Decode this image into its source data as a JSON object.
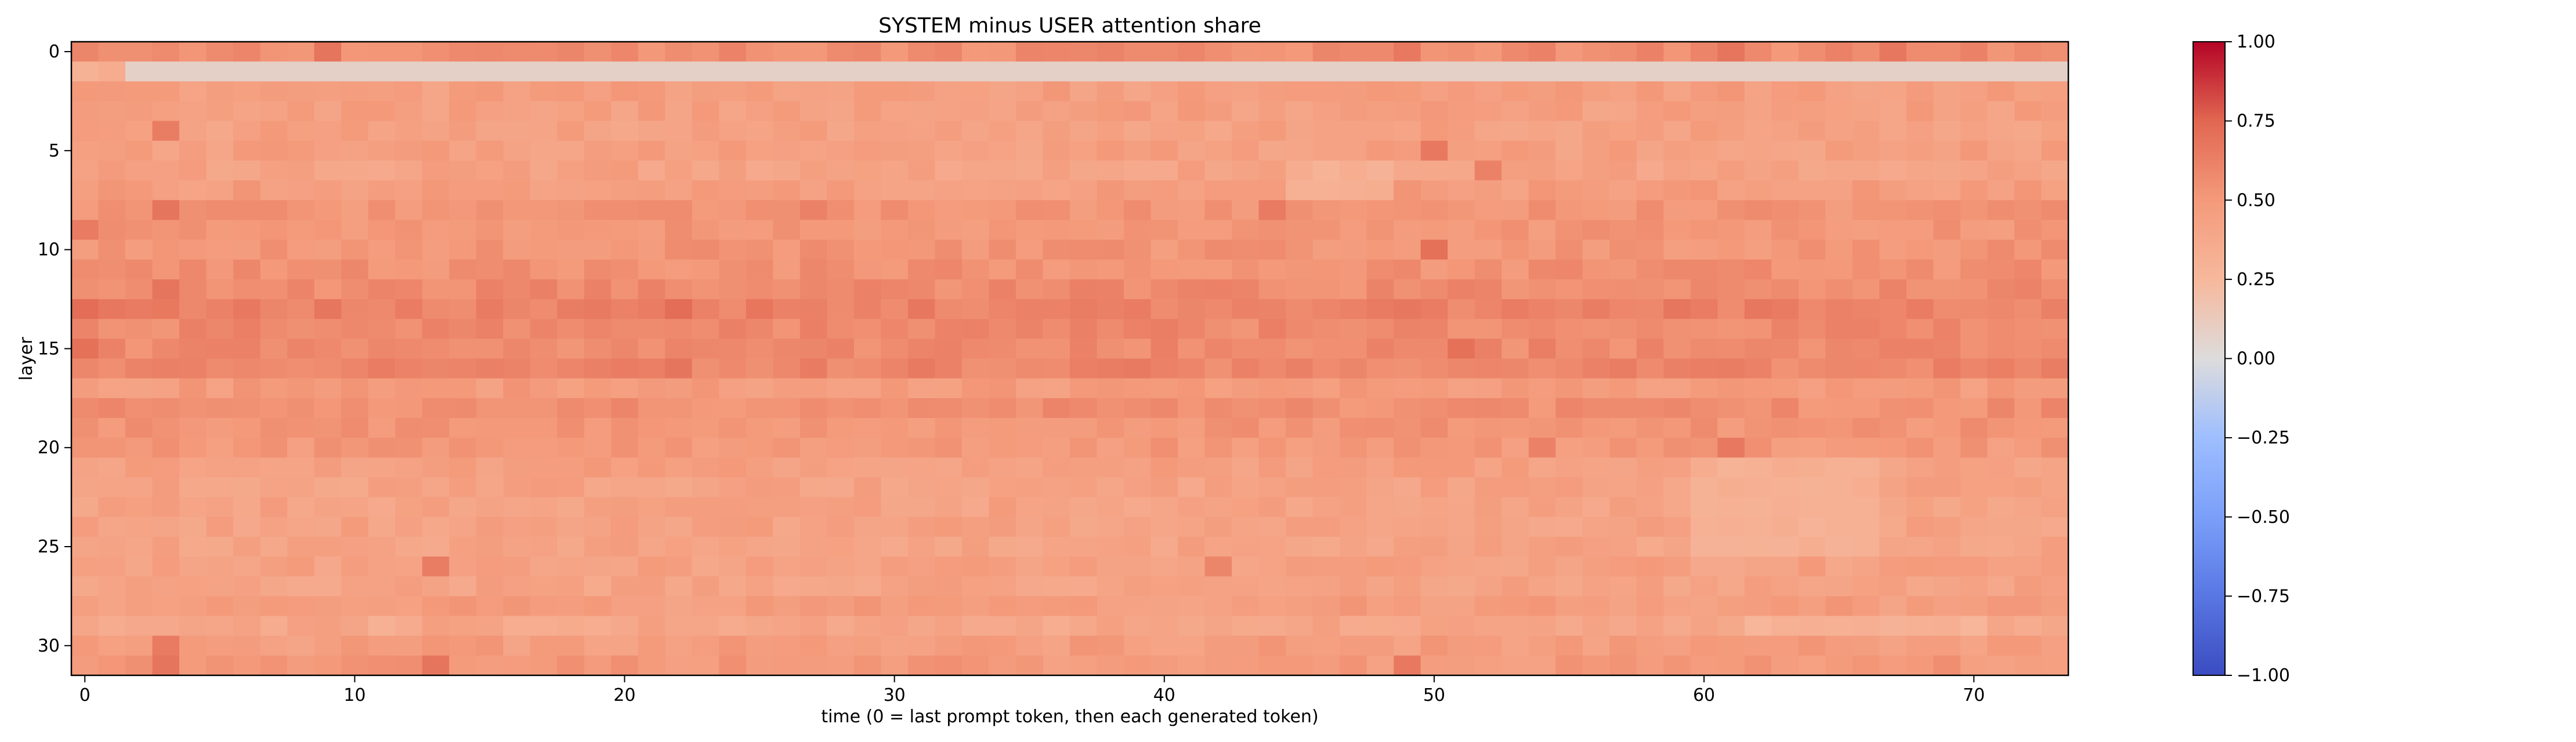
{
  "chart_data": {
    "type": "heatmap",
    "title": "SYSTEM minus USER attention share",
    "xlabel": "time (0 = last prompt token, then each generated token)",
    "ylabel": "layer",
    "x_count": 74,
    "y_count": 32,
    "xlim": [
      -0.5,
      73.5
    ],
    "ylim": [
      31.5,
      -0.5
    ],
    "x_ticks": [
      0,
      10,
      20,
      30,
      40,
      50,
      60,
      70
    ],
    "y_ticks": [
      0,
      5,
      10,
      15,
      20,
      25,
      30
    ],
    "colormap": "coolwarm",
    "colorbar": {
      "vmin": -1.0,
      "vmax": 1.0,
      "ticks": [
        1.0,
        0.75,
        0.5,
        0.25,
        0.0,
        -0.25,
        -0.5,
        -0.75,
        -1.0
      ],
      "tick_labels": [
        "1.00",
        "0.75",
        "0.50",
        "0.25",
        "0.00",
        "−0.25",
        "−0.50",
        "−0.75",
        "−1.00"
      ]
    },
    "layer_baseline": [
      0.56,
      0.08,
      0.46,
      0.45,
      0.44,
      0.45,
      0.43,
      0.47,
      0.52,
      0.51,
      0.52,
      0.54,
      0.57,
      0.62,
      0.58,
      0.58,
      0.6,
      0.48,
      0.55,
      0.52,
      0.5,
      0.45,
      0.43,
      0.43,
      0.43,
      0.42,
      0.44,
      0.42,
      0.47,
      0.4,
      0.47,
      0.5
    ],
    "layer0_head_values": [
      0.6,
      0.55,
      0.55,
      0.58
    ],
    "layer1_head_values": [
      0.3,
      0.35
    ],
    "notable_cells": [
      {
        "layer": 0,
        "t": 9,
        "value": 0.68
      },
      {
        "layer": 0,
        "t": 49,
        "value": 0.66
      },
      {
        "layer": 0,
        "t": 61,
        "value": 0.68
      },
      {
        "layer": 0,
        "t": 67,
        "value": 0.67
      },
      {
        "layer": 4,
        "t": 3,
        "value": 0.64
      },
      {
        "layer": 5,
        "t": 50,
        "value": 0.66
      },
      {
        "layer": 6,
        "t": 52,
        "value": 0.62
      },
      {
        "layer": 8,
        "t": 3,
        "value": 0.68
      },
      {
        "layer": 8,
        "t": 27,
        "value": 0.62
      },
      {
        "layer": 8,
        "t": 44,
        "value": 0.65
      },
      {
        "layer": 9,
        "t": 0,
        "value": 0.65
      },
      {
        "layer": 10,
        "t": 50,
        "value": 0.7
      },
      {
        "layer": 12,
        "t": 3,
        "value": 0.68
      },
      {
        "layer": 13,
        "t": 0,
        "value": 0.72
      },
      {
        "layer": 13,
        "t": 22,
        "value": 0.72
      },
      {
        "layer": 15,
        "t": 0,
        "value": 0.7
      },
      {
        "layer": 15,
        "t": 51,
        "value": 0.7
      },
      {
        "layer": 16,
        "t": 22,
        "value": 0.68
      },
      {
        "layer": 20,
        "t": 61,
        "value": 0.66
      },
      {
        "layer": 20,
        "t": 54,
        "value": 0.62
      },
      {
        "layer": 26,
        "t": 13,
        "value": 0.64
      },
      {
        "layer": 26,
        "t": 42,
        "value": 0.6
      },
      {
        "layer": 30,
        "t": 3,
        "value": 0.65
      },
      {
        "layer": 31,
        "t": 3,
        "value": 0.68
      },
      {
        "layer": 31,
        "t": 13,
        "value": 0.68
      },
      {
        "layer": 31,
        "t": 49,
        "value": 0.66
      }
    ],
    "low_regions": [
      {
        "layers": [
          1,
          1
        ],
        "t_from": 2,
        "t_to": 73,
        "value": 0.08
      },
      {
        "layers": [
          6,
          7
        ],
        "t_from": 45,
        "t_to": 48,
        "value": 0.32
      },
      {
        "layers": [
          21,
          25
        ],
        "t_from": 60,
        "t_to": 66,
        "value": 0.32
      },
      {
        "layers": [
          29,
          29
        ],
        "t_from": 62,
        "t_to": 70,
        "value": 0.3
      },
      {
        "layers": [
          29,
          29
        ],
        "t_from": 11,
        "t_to": 11,
        "value": 0.28
      }
    ]
  }
}
